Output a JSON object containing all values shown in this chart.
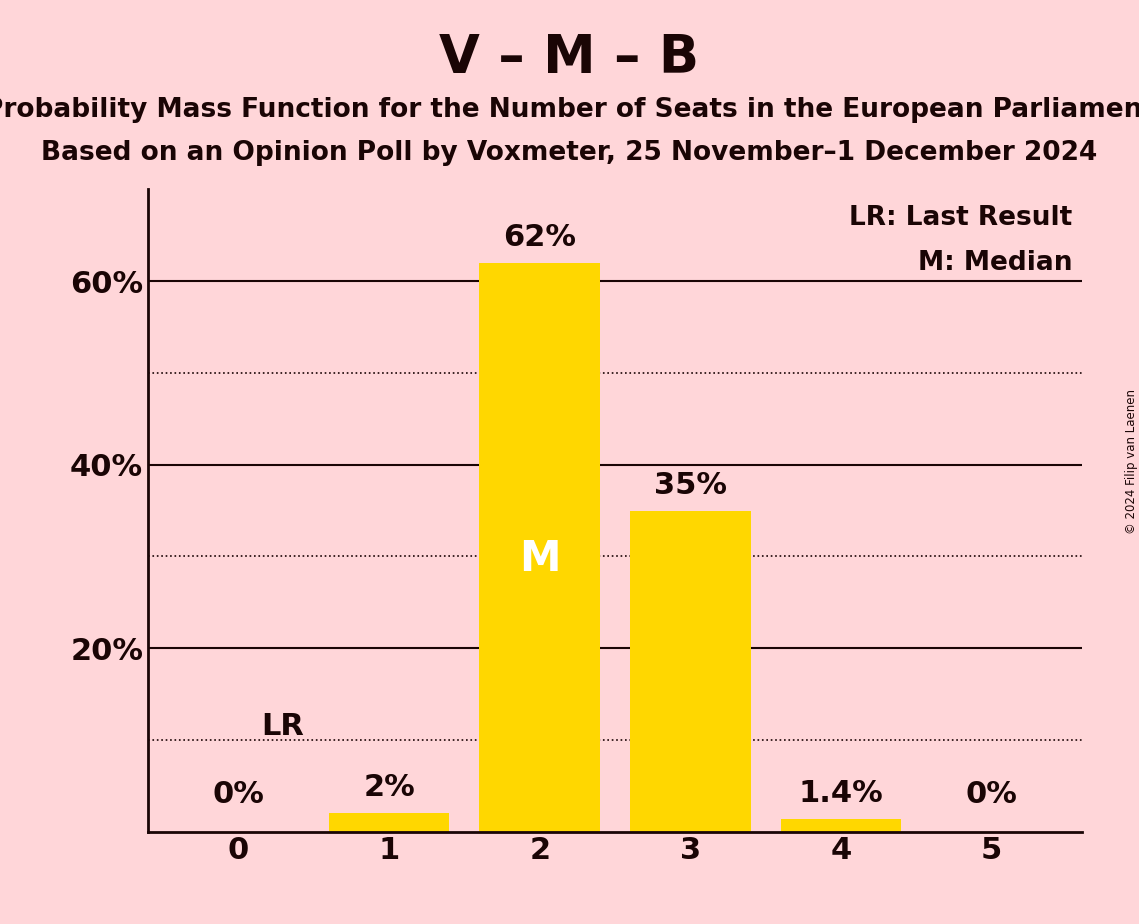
{
  "title": "V – M – B",
  "subtitle1": "Probability Mass Function for the Number of Seats in the European Parliament",
  "subtitle2": "Based on an Opinion Poll by Voxmeter, 25 November–1 December 2024",
  "categories": [
    0,
    1,
    2,
    3,
    4,
    5
  ],
  "values": [
    0.0,
    2.0,
    62.0,
    35.0,
    1.4,
    0.0
  ],
  "bar_color": "#FFD700",
  "background_color": "#FFD6D9",
  "bar_labels": [
    "0%",
    "2%",
    "62%",
    "35%",
    "1.4%",
    "0%"
  ],
  "median_bar_index": 2,
  "lr_bar_index": 0,
  "legend_lr": "LR: Last Result",
  "legend_m": "M: Median",
  "ylabel_ticks": [
    20,
    40,
    60
  ],
  "dotted_lines": [
    10,
    30,
    50
  ],
  "solid_lines": [
    20,
    40,
    60
  ],
  "ylim": [
    0,
    70
  ],
  "copyright": "© 2024 Filip van Laenen",
  "title_fontsize": 38,
  "subtitle_fontsize": 19,
  "bar_label_fontsize": 22,
  "median_label_fontsize": 30,
  "axis_fontsize": 22,
  "legend_fontsize": 19,
  "text_color": "#1a0505"
}
